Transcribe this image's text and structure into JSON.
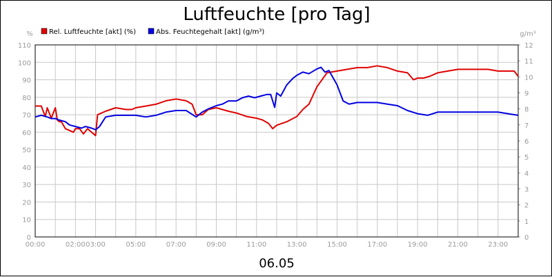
{
  "chart_data": {
    "type": "line",
    "title": "Luftfeuchte [pro Tag]",
    "date_label": "06.05",
    "left_unit": "%",
    "right_unit": "g/m³",
    "ylim_left": [
      0,
      110
    ],
    "ylim_right": [
      0,
      12
    ],
    "yticks_left": [
      "0",
      "10",
      "20",
      "30",
      "40",
      "50",
      "60",
      "70",
      "80",
      "90",
      "100",
      "110"
    ],
    "yticks_right": [
      "0",
      "1",
      "2",
      "3",
      "4",
      "5",
      "6",
      "7",
      "8",
      "9",
      "10",
      "11",
      "12"
    ],
    "xlim": [
      0,
      24
    ],
    "xticks": [
      {
        "value": 0,
        "label": "00:00"
      },
      {
        "value": 2,
        "label": "02:00"
      },
      {
        "value": 3,
        "label": "03:00"
      },
      {
        "value": 5,
        "label": "05:00"
      },
      {
        "value": 7,
        "label": "07:00"
      },
      {
        "value": 9,
        "label": "09:00"
      },
      {
        "value": 11,
        "label": "11:00"
      },
      {
        "value": 13,
        "label": "13:00"
      },
      {
        "value": 15,
        "label": "15:00"
      },
      {
        "value": 17,
        "label": "17:00"
      },
      {
        "value": 19,
        "label": "19:00"
      },
      {
        "value": 21,
        "label": "21:00"
      },
      {
        "value": 23,
        "label": "23:00"
      }
    ],
    "grid": true,
    "legend_position": "top-left",
    "series": [
      {
        "name": "Rel. Luftfeuchte [akt] (%)",
        "axis": "left",
        "color": "#e00000",
        "x": [
          0,
          0.3,
          0.5,
          0.6,
          0.8,
          1.0,
          1.1,
          1.2,
          1.3,
          1.5,
          1.7,
          1.9,
          2.0,
          2.2,
          2.4,
          2.6,
          2.8,
          3.0,
          3.1,
          3.3,
          3.5,
          4.0,
          4.5,
          4.8,
          5.0,
          5.5,
          6.0,
          6.5,
          7.0,
          7.5,
          7.8,
          8.0,
          8.3,
          8.6,
          9.0,
          9.3,
          9.6,
          10.0,
          10.5,
          11.0,
          11.3,
          11.6,
          11.8,
          12.0,
          12.5,
          13.0,
          13.3,
          13.6,
          14.0,
          14.5,
          15.0,
          15.5,
          16.0,
          16.5,
          17.0,
          17.5,
          18.0,
          18.5,
          18.8,
          19.0,
          19.3,
          19.6,
          20.0,
          20.5,
          21.0,
          21.5,
          22.0,
          22.5,
          23.0,
          23.5,
          23.8,
          24.0
        ],
        "y": [
          75,
          75,
          69,
          74,
          68,
          74,
          67,
          66,
          66,
          62,
          61,
          60,
          62,
          62,
          59,
          62,
          60,
          58,
          70,
          71,
          72,
          74,
          73,
          73,
          74,
          75,
          76,
          78,
          79,
          78,
          76,
          70,
          70,
          73,
          74,
          73,
          72,
          71,
          69,
          68,
          67,
          65,
          62,
          64,
          66,
          69,
          73,
          76,
          86,
          94,
          95,
          96,
          97,
          97,
          98,
          97,
          95,
          94,
          90,
          91,
          91,
          92,
          94,
          95,
          96,
          96,
          96,
          96,
          95,
          95,
          95,
          92
        ]
      },
      {
        "name": "Abs. Feuchtegehalt [akt] (g/m³)",
        "axis": "right",
        "color": "#0000e0",
        "x": [
          0,
          0.3,
          0.6,
          0.8,
          1.0,
          1.2,
          1.5,
          1.7,
          2.0,
          2.3,
          2.5,
          2.8,
          3.0,
          3.2,
          3.5,
          4.0,
          4.5,
          5.0,
          5.5,
          6.0,
          6.5,
          7.0,
          7.5,
          8.0,
          8.3,
          8.6,
          9.0,
          9.3,
          9.6,
          10.0,
          10.3,
          10.6,
          10.9,
          11.2,
          11.5,
          11.7,
          11.9,
          12.0,
          12.2,
          12.5,
          12.8,
          13.0,
          13.3,
          13.6,
          14.0,
          14.2,
          14.4,
          14.6,
          15.0,
          15.3,
          15.6,
          16.0,
          16.5,
          17.0,
          17.5,
          18.0,
          18.5,
          19.0,
          19.5,
          20.0,
          20.5,
          21.0,
          21.5,
          22.0,
          22.5,
          23.0,
          23.5,
          24.0
        ],
        "y": [
          7.5,
          7.6,
          7.5,
          7.4,
          7.4,
          7.3,
          7.2,
          7.0,
          6.9,
          6.8,
          6.9,
          6.8,
          6.7,
          6.9,
          7.5,
          7.6,
          7.6,
          7.6,
          7.5,
          7.6,
          7.8,
          7.9,
          7.9,
          7.5,
          7.8,
          8.0,
          8.2,
          8.3,
          8.5,
          8.5,
          8.7,
          8.8,
          8.7,
          8.8,
          8.9,
          8.9,
          8.1,
          9.0,
          8.8,
          9.5,
          9.9,
          10.1,
          10.3,
          10.2,
          10.5,
          10.6,
          10.3,
          10.4,
          9.5,
          8.5,
          8.3,
          8.4,
          8.4,
          8.4,
          8.3,
          8.2,
          7.9,
          7.7,
          7.6,
          7.8,
          7.8,
          7.8,
          7.8,
          7.8,
          7.8,
          7.8,
          7.7,
          7.6
        ]
      }
    ]
  }
}
